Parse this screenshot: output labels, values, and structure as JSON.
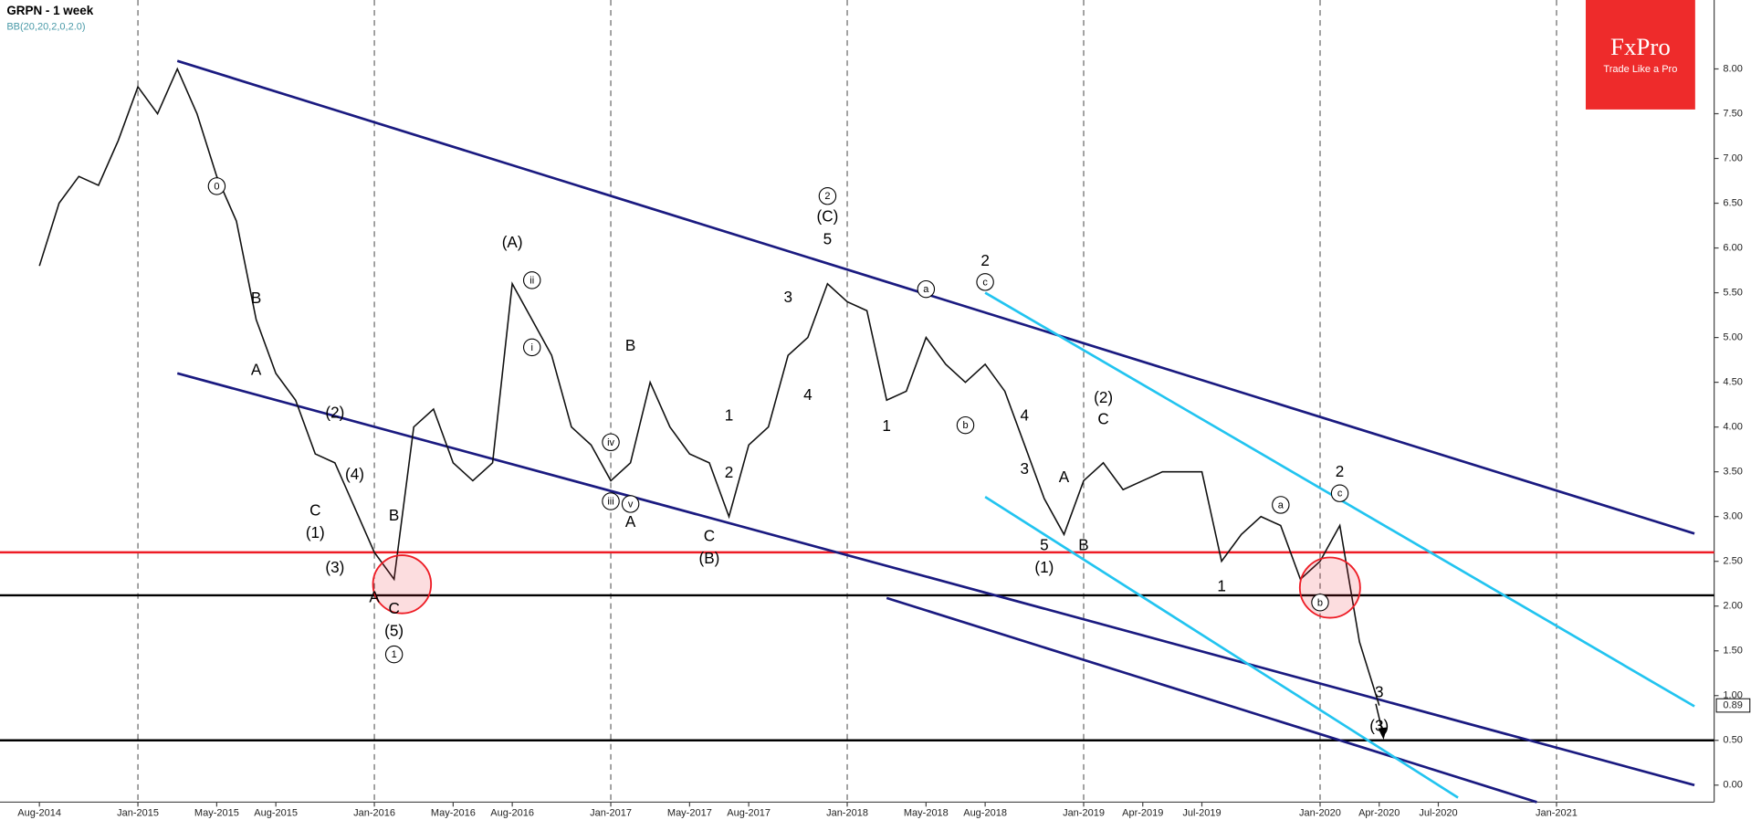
{
  "header": {
    "title": "GRPN - 1 week",
    "indicator": "BB(20,20,2,0,2.0)"
  },
  "logo": {
    "brand": "FxPro",
    "tagline": "Trade Like a Pro"
  },
  "chart_data": {
    "type": "line",
    "color": "#111111",
    "x": [
      "Aug-2014",
      "Sep-2014",
      "Oct-2014",
      "Nov-2014",
      "Dec-2014",
      "Jan-2015",
      "Feb-2015",
      "Mar-2015",
      "Apr-2015",
      "May-2015",
      "Jun-2015",
      "Jul-2015",
      "Aug-2015",
      "Sep-2015",
      "Oct-2015",
      "Nov-2015",
      "Dec-2015",
      "Jan-2016",
      "Feb-2016",
      "Mar-2016",
      "Apr-2016",
      "May-2016",
      "Jun-2016",
      "Jul-2016",
      "Aug-2016",
      "Sep-2016",
      "Oct-2016",
      "Nov-2016",
      "Dec-2016",
      "Jan-2017",
      "Feb-2017",
      "Mar-2017",
      "Apr-2017",
      "May-2017",
      "Jun-2017",
      "Jul-2017",
      "Aug-2017",
      "Sep-2017",
      "Oct-2017",
      "Nov-2017",
      "Dec-2017",
      "Jan-2018",
      "Feb-2018",
      "Mar-2018",
      "Apr-2018",
      "May-2018",
      "Jun-2018",
      "Jul-2018",
      "Aug-2018",
      "Sep-2018",
      "Oct-2018",
      "Nov-2018",
      "Dec-2018",
      "Jan-2019",
      "Feb-2019",
      "Mar-2019",
      "Apr-2019",
      "May-2019",
      "Jun-2019",
      "Jul-2019",
      "Aug-2019",
      "Sep-2019",
      "Oct-2019",
      "Nov-2019",
      "Dec-2019",
      "Jan-2020",
      "Feb-2020",
      "Mar-2020",
      "Apr-2020"
    ],
    "values": [
      5.8,
      6.5,
      6.8,
      6.7,
      7.2,
      7.8,
      7.5,
      8.0,
      7.5,
      6.8,
      6.3,
      5.2,
      4.6,
      4.3,
      3.7,
      3.6,
      3.1,
      2.6,
      2.3,
      4.0,
      4.2,
      3.6,
      3.4,
      3.6,
      5.6,
      5.2,
      4.8,
      4.0,
      3.8,
      3.4,
      3.6,
      4.5,
      4.0,
      3.7,
      3.6,
      3.0,
      3.8,
      4.0,
      4.8,
      5.0,
      5.6,
      5.4,
      5.3,
      4.3,
      4.4,
      5.0,
      4.7,
      4.5,
      4.7,
      4.4,
      3.8,
      3.2,
      2.8,
      3.4,
      3.6,
      3.3,
      3.4,
      3.5,
      3.5,
      3.5,
      2.5,
      2.8,
      3.0,
      2.9,
      2.3,
      2.5,
      2.9,
      1.6,
      0.89
    ],
    "last_value": 0.89,
    "xlim": [
      "Jun-2014",
      "Sep-2021"
    ],
    "xticks": [
      "Aug-2014",
      "Jan-2015",
      "May-2015",
      "Aug-2015",
      "Jan-2016",
      "May-2016",
      "Aug-2016",
      "Jan-2017",
      "May-2017",
      "Aug-2017",
      "Jan-2018",
      "May-2018",
      "Aug-2018",
      "Jan-2019",
      "Apr-2019",
      "Jul-2019",
      "Jan-2020",
      "Apr-2020",
      "Jul-2020",
      "Jan-2021"
    ],
    "ylim": [
      -0.19,
      8.77
    ],
    "yticks": [
      {
        "value": 0,
        "label": "0.00"
      },
      {
        "value": 0.5,
        "label": "0.50"
      },
      {
        "value": 1,
        "label": "1.00"
      },
      {
        "value": 1.5,
        "label": "1.50"
      },
      {
        "value": 2,
        "label": "2.00"
      },
      {
        "value": 2.5,
        "label": "2.50"
      },
      {
        "value": 3,
        "label": "3.00"
      },
      {
        "value": 3.5,
        "label": "3.50"
      },
      {
        "value": 4,
        "label": "4.00"
      },
      {
        "value": 4.5,
        "label": "4.50"
      },
      {
        "value": 5,
        "label": "5.00"
      },
      {
        "value": 5.5,
        "label": "5.50"
      },
      {
        "value": 6,
        "label": "6.00"
      },
      {
        "value": 6.5,
        "label": "6.50"
      },
      {
        "value": 7,
        "label": "7.00"
      },
      {
        "value": 7.5,
        "label": "7.50"
      },
      {
        "value": 8,
        "label": "8.00"
      }
    ],
    "levels": [
      {
        "value": 2.6,
        "color": "#ee1c25"
      },
      {
        "value": 2.12,
        "color": "#000000"
      },
      {
        "value": 0.5,
        "color": "#000000"
      }
    ],
    "trendlines": [
      {
        "color": "#1a1a80",
        "points": [
          [
            "Mar-2015",
            8.09
          ],
          [
            "Aug-2021",
            2.81
          ]
        ]
      },
      {
        "color": "#1a1a80",
        "points": [
          [
            "Mar-2015",
            4.6
          ],
          [
            "Aug-2021",
            0.0
          ]
        ]
      },
      {
        "color": "#1a1a80",
        "points": [
          [
            "Mar-2018",
            2.09
          ],
          [
            "Dec-2020",
            -0.19
          ]
        ]
      },
      {
        "color": "#22c4f0",
        "points": [
          [
            "Aug-2018",
            5.5
          ],
          [
            "Aug-2021",
            0.88
          ]
        ]
      },
      {
        "color": "#22c4f0",
        "points": [
          [
            "Aug-2018",
            3.22
          ],
          [
            "Aug-2020",
            -0.14
          ]
        ]
      }
    ],
    "annotations": [
      {
        "text": "0",
        "x": "May-2015",
        "y": 6.69,
        "circled": true
      },
      {
        "text": "B",
        "x": "Jul-2015",
        "y": 5.43
      },
      {
        "text": "A",
        "x": "Jul-2015",
        "y": 4.63
      },
      {
        "text": "(2)",
        "x": "Nov-2015",
        "y": 4.15
      },
      {
        "text": "C",
        "x": "Oct-2015",
        "y": 3.06
      },
      {
        "text": "(1)",
        "x": "Oct-2015",
        "y": 2.81
      },
      {
        "text": "(3)",
        "x": "Nov-2015",
        "y": 2.42
      },
      {
        "text": "(4)",
        "x": "Dec-2015",
        "y": 3.46
      },
      {
        "text": "B",
        "x": "Feb-2016",
        "y": 3.0
      },
      {
        "text": "A",
        "x": "Jan-2016",
        "y": 2.09
      },
      {
        "text": "C",
        "x": "Feb-2016",
        "y": 1.96
      },
      {
        "text": "(5)",
        "x": "Feb-2016",
        "y": 1.71
      },
      {
        "text": "1",
        "x": "Feb-2016",
        "y": 1.46,
        "circled": true
      },
      {
        "text": "(A)",
        "x": "Aug-2016",
        "y": 6.05
      },
      {
        "text": "ii",
        "x": "Sep-2016",
        "y": 5.64,
        "circled": true
      },
      {
        "text": "i",
        "x": "Sep-2016",
        "y": 4.89,
        "circled": true
      },
      {
        "text": "B",
        "x": "Feb-2017",
        "y": 4.9
      },
      {
        "text": "iv",
        "x": "Jan-2017",
        "y": 3.83,
        "circled": true
      },
      {
        "text": "iii",
        "x": "Jan-2017",
        "y": 3.17,
        "circled": true
      },
      {
        "text": "v",
        "x": "Feb-2017",
        "y": 3.14,
        "circled": true
      },
      {
        "text": "A",
        "x": "Feb-2017",
        "y": 2.93
      },
      {
        "text": "C",
        "x": "Jun-2017",
        "y": 2.77
      },
      {
        "text": "(B)",
        "x": "Jun-2017",
        "y": 2.52
      },
      {
        "text": "1",
        "x": "Jul-2017",
        "y": 4.12
      },
      {
        "text": "2",
        "x": "Jul-2017",
        "y": 3.48
      },
      {
        "text": "3",
        "x": "Oct-2017",
        "y": 5.44
      },
      {
        "text": "4",
        "x": "Nov-2017",
        "y": 4.35
      },
      {
        "text": "5",
        "x": "Dec-2017",
        "y": 6.09
      },
      {
        "text": "(C)",
        "x": "Dec-2017",
        "y": 6.34
      },
      {
        "text": "2",
        "x": "Dec-2017",
        "y": 6.58,
        "circled": true
      },
      {
        "text": "a",
        "x": "May-2018",
        "y": 5.54,
        "circled": true
      },
      {
        "text": "1",
        "x": "Mar-2018",
        "y": 4.0
      },
      {
        "text": "b",
        "x": "Jul-2018",
        "y": 4.02,
        "circled": true
      },
      {
        "text": "2",
        "x": "Aug-2018",
        "y": 5.85
      },
      {
        "text": "c",
        "x": "Aug-2018",
        "y": 5.62,
        "circled": true
      },
      {
        "text": "4",
        "x": "Oct-2018",
        "y": 4.12
      },
      {
        "text": "3",
        "x": "Oct-2018",
        "y": 3.52
      },
      {
        "text": "A",
        "x": "Dec-2018",
        "y": 3.43
      },
      {
        "text": "5",
        "x": "Nov-2018",
        "y": 2.67
      },
      {
        "text": "B",
        "x": "Jan-2019",
        "y": 2.67
      },
      {
        "text": "(1)",
        "x": "Nov-2018",
        "y": 2.42
      },
      {
        "text": "(2)",
        "x": "Feb-2019",
        "y": 4.32
      },
      {
        "text": "C",
        "x": "Feb-2019",
        "y": 4.08
      },
      {
        "text": "a",
        "x": "Nov-2019",
        "y": 3.13,
        "circled": true
      },
      {
        "text": "1",
        "x": "Aug-2019",
        "y": 2.21
      },
      {
        "text": "2",
        "x": "Feb-2020",
        "y": 3.49
      },
      {
        "text": "c",
        "x": "Feb-2020",
        "y": 3.26,
        "circled": true
      },
      {
        "text": "b",
        "x": "Jan-2020",
        "y": 2.04,
        "circled": true
      },
      {
        "text": "3",
        "x": "Apr-2020",
        "y": 1.03
      },
      {
        "text": "(3)",
        "x": "Apr-2020",
        "y": 0.65
      }
    ]
  }
}
